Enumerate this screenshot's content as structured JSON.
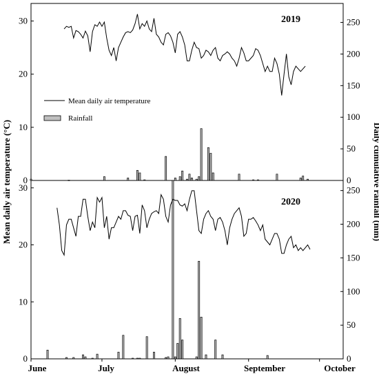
{
  "chart_data": {
    "type": "bar+line",
    "ylabel_left": "Mean daily air temperature (°C)",
    "ylabel_right": "Daily cumulative rainfall (mm)",
    "legend": {
      "line": "Mean daily air temperature",
      "bar": "Rainfall",
      "placement": "upper-left of top panel"
    },
    "month_labels": [
      "June",
      "July",
      "August",
      "September",
      "October"
    ],
    "month_positions_doy": [
      152,
      182,
      213,
      244,
      274
    ],
    "x_range_doy": [
      152,
      284
    ],
    "panels": [
      {
        "year": "2019",
        "left_ticks": [
          0,
          10,
          20,
          30
        ],
        "left_range": [
          0,
          33.3
        ],
        "right_ticks": [
          0,
          50,
          100,
          150,
          200,
          250
        ],
        "right_range": [
          0,
          280
        ],
        "temperature_start_doy": 166,
        "temperature": [
          28.5,
          29.0,
          28.8,
          29.0,
          26.8,
          28.2,
          28.0,
          27.5,
          26.8,
          28.1,
          27.2,
          24.2,
          28.0,
          29.3,
          29.0,
          29.8,
          29.0,
          29.8,
          26.8,
          24.5,
          23.5,
          25.0,
          22.5,
          25.0,
          26.0,
          27.0,
          27.8,
          28.0,
          27.8,
          28.3,
          29.5,
          31.3,
          28.5,
          29.5,
          29.0,
          30.0,
          28.5,
          28.0,
          30.5,
          27.5,
          27.0,
          26.0,
          25.5,
          27.5,
          27.8,
          27.2,
          26.0,
          24.0,
          27.5,
          28.0,
          27.0,
          25.5,
          22.5,
          22.5,
          24.5,
          26.0,
          25.0,
          24.8,
          23.0,
          23.5,
          24.5,
          24.2,
          23.5,
          24.5,
          25.0,
          23.0,
          22.5,
          23.5,
          23.8,
          24.2,
          23.8,
          23.0,
          22.5,
          21.5,
          23.0,
          25.0,
          24.0,
          22.5,
          22.5,
          23.0,
          23.5,
          24.8,
          24.5,
          23.5,
          22.0,
          20.5,
          21.5,
          20.5,
          20.5,
          23.0,
          22.0,
          20.0,
          16.0,
          20.0,
          23.8,
          19.5,
          18.0,
          20.5,
          21.5,
          21.0,
          20.5,
          21.0,
          21.5
        ],
        "rainfall": [
          {
            "doy": 152,
            "mm": 2
          },
          {
            "doy": 168,
            "mm": 0.5
          },
          {
            "doy": 183,
            "mm": 6
          },
          {
            "doy": 193,
            "mm": 4
          },
          {
            "doy": 197,
            "mm": 16
          },
          {
            "doy": 198,
            "mm": 12
          },
          {
            "doy": 200,
            "mm": 1
          },
          {
            "doy": 209,
            "mm": 38
          },
          {
            "doy": 213,
            "mm": 4
          },
          {
            "doy": 215,
            "mm": 6
          },
          {
            "doy": 216,
            "mm": 15
          },
          {
            "doy": 218,
            "mm": 2
          },
          {
            "doy": 219,
            "mm": 10
          },
          {
            "doy": 220,
            "mm": 4
          },
          {
            "doy": 222,
            "mm": 2
          },
          {
            "doy": 223,
            "mm": 6
          },
          {
            "doy": 224,
            "mm": 82
          },
          {
            "doy": 227,
            "mm": 52
          },
          {
            "doy": 228,
            "mm": 43
          },
          {
            "doy": 229,
            "mm": 12
          },
          {
            "doy": 240,
            "mm": 10
          },
          {
            "doy": 246,
            "mm": 1
          },
          {
            "doy": 248,
            "mm": 1
          },
          {
            "doy": 256,
            "mm": 10
          },
          {
            "doy": 266,
            "mm": 4
          },
          {
            "doy": 267,
            "mm": 7
          },
          {
            "doy": 269,
            "mm": 2
          }
        ]
      },
      {
        "year": "2020",
        "left_ticks": [
          0,
          10,
          20,
          30
        ],
        "left_range": [
          0,
          31.3
        ],
        "right_ticks": [
          0,
          50,
          100,
          150,
          200,
          250
        ],
        "right_range": [
          0,
          265
        ],
        "temperature_start_doy": 163,
        "temperature": [
          26.5,
          23.5,
          19.0,
          18.2,
          23.5,
          24.5,
          24.5,
          23.0,
          21.5,
          25.0,
          25.0,
          28.0,
          28.0,
          25.0,
          22.5,
          24.0,
          23.0,
          28.3,
          27.5,
          28.3,
          23.0,
          25.0,
          21.0,
          23.0,
          23.0,
          24.0,
          25.0,
          24.5,
          26.0,
          26.0,
          25.2,
          25.0,
          22.5,
          25.0,
          25.2,
          22.0,
          27.0,
          26.0,
          23.0,
          24.5,
          25.5,
          25.8,
          26.0,
          25.5,
          28.8,
          28.0,
          25.0,
          24.0,
          27.0,
          28.0,
          27.8,
          27.8,
          27.0,
          26.8,
          27.2,
          26.0,
          28.0,
          29.5,
          29.5,
          26.0,
          22.5,
          22.0,
          24.5,
          25.5,
          26.0,
          25.0,
          24.5,
          22.5,
          24.5,
          24.8,
          24.0,
          22.5,
          20.0,
          23.0,
          24.5,
          25.5,
          26.0,
          26.5,
          25.0,
          21.5,
          22.0,
          24.5,
          24.5,
          24.8,
          24.2,
          23.5,
          22.5,
          23.5,
          21.0,
          20.5,
          20.0,
          21.0,
          22.0,
          22.0,
          21.0,
          18.5,
          18.5,
          20.0,
          21.0,
          21.5,
          19.5,
          20.0,
          19.0,
          19.5,
          19.0,
          19.5,
          20.0,
          19.2
        ],
        "rainfall": [
          {
            "doy": 159,
            "mm": 13
          },
          {
            "doy": 167,
            "mm": 2
          },
          {
            "doy": 170,
            "mm": 2
          },
          {
            "doy": 174,
            "mm": 6
          },
          {
            "doy": 175,
            "mm": 3
          },
          {
            "doy": 178,
            "mm": 1
          },
          {
            "doy": 180,
            "mm": 7
          },
          {
            "doy": 189,
            "mm": 10
          },
          {
            "doy": 191,
            "mm": 35
          },
          {
            "doy": 195,
            "mm": 1
          },
          {
            "doy": 197,
            "mm": 1
          },
          {
            "doy": 198,
            "mm": 1
          },
          {
            "doy": 201,
            "mm": 33
          },
          {
            "doy": 204,
            "mm": 10
          },
          {
            "doy": 209,
            "mm": 2
          },
          {
            "doy": 210,
            "mm": 3
          },
          {
            "doy": 212,
            "mm": 265
          },
          {
            "doy": 213,
            "mm": 3
          },
          {
            "doy": 214,
            "mm": 23
          },
          {
            "doy": 215,
            "mm": 60
          },
          {
            "doy": 216,
            "mm": 28
          },
          {
            "doy": 222,
            "mm": 3
          },
          {
            "doy": 223,
            "mm": 145
          },
          {
            "doy": 224,
            "mm": 62
          },
          {
            "doy": 226,
            "mm": 6
          },
          {
            "doy": 230,
            "mm": 28
          },
          {
            "doy": 233,
            "mm": 6
          },
          {
            "doy": 252,
            "mm": 5
          }
        ]
      }
    ]
  }
}
